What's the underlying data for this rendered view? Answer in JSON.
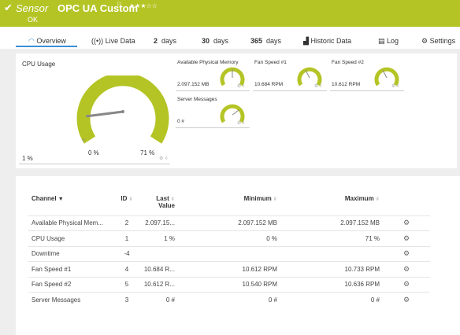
{
  "header": {
    "sensor_label": "Sensor",
    "sensor_name": "OPC UA Custom",
    "flag": "⚐",
    "stars": "★★★☆☆",
    "status": "OK"
  },
  "tabs": [
    {
      "label": "Overview"
    },
    {
      "label": "Live Data"
    },
    {
      "num": "2",
      "label": "days"
    },
    {
      "num": "30",
      "label": "days"
    },
    {
      "num": "365",
      "label": "days"
    },
    {
      "label": "Historic Data"
    },
    {
      "label": "Log"
    },
    {
      "label": "Settings"
    }
  ],
  "gauges": {
    "cpu": {
      "title": "CPU Usage",
      "min_label": "0 %",
      "max_label": "71 %",
      "value_label": "1 %",
      "level": 0.14
    },
    "memory": {
      "title": "Available Physical Memory",
      "value": "2.097.152 MB",
      "level": 0.5
    },
    "fan1": {
      "title": "Fan Speed #1",
      "value": "10.684 RPM",
      "level": 0.4
    },
    "fan2": {
      "title": "Fan Speed #2",
      "value": "10.612 RPM",
      "level": 0.4
    },
    "messages": {
      "title": "Server Messages",
      "value": "0 #",
      "level": 0.7
    }
  },
  "table": {
    "headers": {
      "channel": "Channel",
      "id": "ID",
      "last_line1": "Last",
      "last_line2": "Value",
      "minimum": "Minimum",
      "maximum": "Maximum"
    },
    "rows": [
      {
        "channel": "Available Physical Mem...",
        "id": "2",
        "last": "2.097.15...",
        "min": "2.097.152 MB",
        "max": "2.097.152 MB"
      },
      {
        "channel": "CPU Usage",
        "id": "1",
        "last": "1 %",
        "min": "0 %",
        "max": "71 %"
      },
      {
        "channel": "Downtime",
        "id": "-4",
        "last": "",
        "min": "",
        "max": ""
      },
      {
        "channel": "Fan Speed #1",
        "id": "4",
        "last": "10.684 R...",
        "min": "10.612 RPM",
        "max": "10.733 RPM"
      },
      {
        "channel": "Fan Speed #2",
        "id": "5",
        "last": "10.612 R...",
        "min": "10.540 RPM",
        "max": "10.636 RPM"
      },
      {
        "channel": "Server Messages",
        "id": "3",
        "last": "0 #",
        "min": "0 #",
        "max": "0 #"
      }
    ]
  },
  "colors": {
    "accent": "#b4c424",
    "tab_active": "#3a8fd4"
  }
}
